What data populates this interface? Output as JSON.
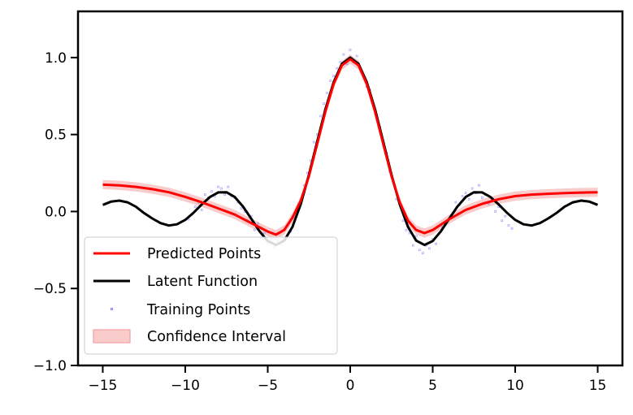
{
  "chart_data": {
    "type": "line",
    "title": "",
    "xlabel": "",
    "ylabel": "",
    "xlim": [
      -16.5,
      16.5
    ],
    "ylim": [
      -1.0,
      1.3
    ],
    "x_ticks": [
      -15,
      -10,
      -5,
      0,
      5,
      10,
      15
    ],
    "x_tick_labels": [
      "−15",
      "−10",
      "−5",
      "0",
      "5",
      "10",
      "15"
    ],
    "y_ticks": [
      -1.0,
      -0.5,
      0.0,
      0.5,
      1.0
    ],
    "y_tick_labels": [
      "−1.0",
      "−0.5",
      "0.0",
      "0.5",
      "1.0"
    ],
    "grid": false,
    "legend_position": "lower-left",
    "colors": {
      "predicted": "#ff0000",
      "latent": "#000000",
      "training": "#6666ff",
      "confidence": "#f4a0a0"
    },
    "series": [
      {
        "name": "Latent Function",
        "kind": "line",
        "x": [
          -15,
          -14.5,
          -14,
          -13.5,
          -13,
          -12.5,
          -12,
          -11.5,
          -11,
          -10.5,
          -10,
          -9.5,
          -9,
          -8.5,
          -8,
          -7.5,
          -7,
          -6.5,
          -6,
          -5.5,
          -5,
          -4.5,
          -4,
          -3.5,
          -3,
          -2.5,
          -2,
          -1.5,
          -1,
          -0.5,
          0,
          0.5,
          1,
          1.5,
          2,
          2.5,
          3,
          3.5,
          4,
          4.5,
          5,
          5.5,
          6,
          6.5,
          7,
          7.5,
          8,
          8.5,
          9,
          9.5,
          10,
          10.5,
          11,
          11.5,
          12,
          12.5,
          13,
          13.5,
          14,
          14.5,
          15
        ],
        "y": [
          0.043,
          0.064,
          0.071,
          0.06,
          0.032,
          -0.01,
          -0.045,
          -0.075,
          -0.091,
          -0.083,
          -0.054,
          -0.008,
          0.046,
          0.094,
          0.124,
          0.125,
          0.094,
          0.033,
          -0.047,
          -0.128,
          -0.192,
          -0.217,
          -0.189,
          -0.1,
          0.047,
          0.239,
          0.455,
          0.665,
          0.841,
          0.959,
          1.0,
          0.959,
          0.841,
          0.665,
          0.455,
          0.239,
          0.047,
          -0.1,
          -0.189,
          -0.217,
          -0.192,
          -0.128,
          -0.047,
          0.033,
          0.094,
          0.125,
          0.124,
          0.094,
          0.046,
          -0.008,
          -0.054,
          -0.083,
          -0.091,
          -0.075,
          -0.045,
          -0.01,
          0.032,
          0.06,
          0.071,
          0.064,
          0.043
        ]
      },
      {
        "name": "Predicted Points",
        "kind": "line",
        "x": [
          -15,
          -14,
          -13,
          -12,
          -11,
          -10,
          -9,
          -8,
          -7,
          -6,
          -5,
          -4.5,
          -4,
          -3.5,
          -3,
          -2.5,
          -2,
          -1.5,
          -1,
          -0.5,
          0,
          0.5,
          1,
          1.5,
          2,
          2.5,
          3,
          3.5,
          4,
          4.5,
          5,
          6,
          7,
          8,
          9,
          10,
          11,
          12,
          13,
          14,
          15
        ],
        "y": [
          0.175,
          0.17,
          0.16,
          0.145,
          0.125,
          0.095,
          0.06,
          0.02,
          -0.02,
          -0.075,
          -0.13,
          -0.15,
          -0.12,
          -0.04,
          0.07,
          0.23,
          0.44,
          0.65,
          0.83,
          0.95,
          0.99,
          0.95,
          0.83,
          0.65,
          0.44,
          0.23,
          0.06,
          -0.06,
          -0.12,
          -0.14,
          -0.12,
          -0.05,
          0.01,
          0.05,
          0.08,
          0.1,
          0.11,
          0.115,
          0.12,
          0.123,
          0.125
        ]
      },
      {
        "name": "Confidence Interval",
        "kind": "band",
        "half_width": 0.03
      },
      {
        "name": "Training Points",
        "kind": "scatter",
        "clusters": [
          {
            "x_range": [
              -10,
              -6
            ],
            "offset_sd": 0.05
          },
          {
            "x_range": [
              -6,
              6
            ],
            "offset_sd": 0.04
          },
          {
            "x_range": [
              6,
              10
            ],
            "offset_sd": 0.05
          }
        ],
        "x": [
          -9.8,
          -9.6,
          -9.4,
          -9.2,
          -9.0,
          -8.8,
          -8.6,
          -8.4,
          -8.2,
          -8.0,
          -7.8,
          -7.6,
          -7.4,
          -7.2,
          -7.0,
          -6.8,
          -6.6,
          -6.4,
          -6.2,
          -6.0,
          -5.8,
          -5.6,
          -5.4,
          -5.2,
          -5.0,
          -4.8,
          -4.6,
          -4.4,
          -4.2,
          -4.0,
          -3.8,
          -3.6,
          -3.4,
          -3.2,
          -3.0,
          -2.8,
          -2.6,
          -2.4,
          -2.2,
          -2.0,
          -1.8,
          -1.6,
          -1.4,
          -1.2,
          -1.0,
          -0.8,
          -0.6,
          -0.4,
          -0.2,
          0.0,
          0.2,
          0.4,
          0.6,
          0.8,
          1.0,
          1.2,
          1.4,
          1.6,
          1.8,
          2.0,
          2.2,
          2.4,
          2.6,
          2.8,
          3.0,
          3.2,
          3.4,
          3.6,
          3.8,
          4.0,
          4.2,
          4.4,
          4.6,
          4.8,
          5.0,
          5.2,
          5.4,
          5.6,
          5.8,
          6.0,
          6.2,
          6.4,
          6.6,
          6.8,
          7.0,
          7.2,
          7.4,
          7.6,
          7.8,
          8.0,
          8.2,
          8.4,
          8.6,
          8.8,
          9.0,
          9.2,
          9.4,
          9.6,
          9.8
        ],
        "y": [
          -0.05,
          -0.02,
          0.03,
          0.06,
          0.01,
          0.11,
          0.09,
          0.13,
          0.1,
          0.16,
          0.15,
          0.11,
          0.16,
          0.1,
          0.09,
          0.06,
          0.02,
          0.0,
          -0.06,
          -0.03,
          -0.12,
          -0.08,
          -0.17,
          -0.14,
          -0.21,
          -0.18,
          -0.23,
          -0.19,
          -0.21,
          -0.17,
          -0.09,
          -0.13,
          -0.04,
          0.02,
          0.05,
          0.17,
          0.25,
          0.33,
          0.45,
          0.5,
          0.62,
          0.7,
          0.77,
          0.85,
          0.88,
          0.93,
          0.97,
          1.02,
          0.96,
          1.05,
          0.97,
          1.01,
          0.93,
          0.89,
          0.81,
          0.79,
          0.7,
          0.62,
          0.55,
          0.43,
          0.38,
          0.26,
          0.2,
          0.08,
          0.06,
          -0.06,
          -0.12,
          -0.14,
          -0.22,
          -0.16,
          -0.25,
          -0.27,
          -0.22,
          -0.24,
          -0.18,
          -0.21,
          -0.14,
          -0.1,
          -0.07,
          -0.05,
          -0.01,
          0.06,
          0.04,
          0.1,
          0.12,
          0.08,
          0.15,
          0.12,
          0.17,
          0.09,
          0.11,
          0.05,
          0.07,
          0.0,
          0.03,
          -0.06,
          -0.03,
          -0.09,
          -0.11
        ]
      }
    ],
    "legend": [
      {
        "label": "Predicted Points",
        "type": "line",
        "color": "#ff0000"
      },
      {
        "label": "Latent Function",
        "type": "line",
        "color": "#000000"
      },
      {
        "label": "Training Points",
        "type": "point",
        "color": "#6666ff"
      },
      {
        "label": "Confidence Interval",
        "type": "patch",
        "color": "#f4a0a0"
      }
    ]
  }
}
